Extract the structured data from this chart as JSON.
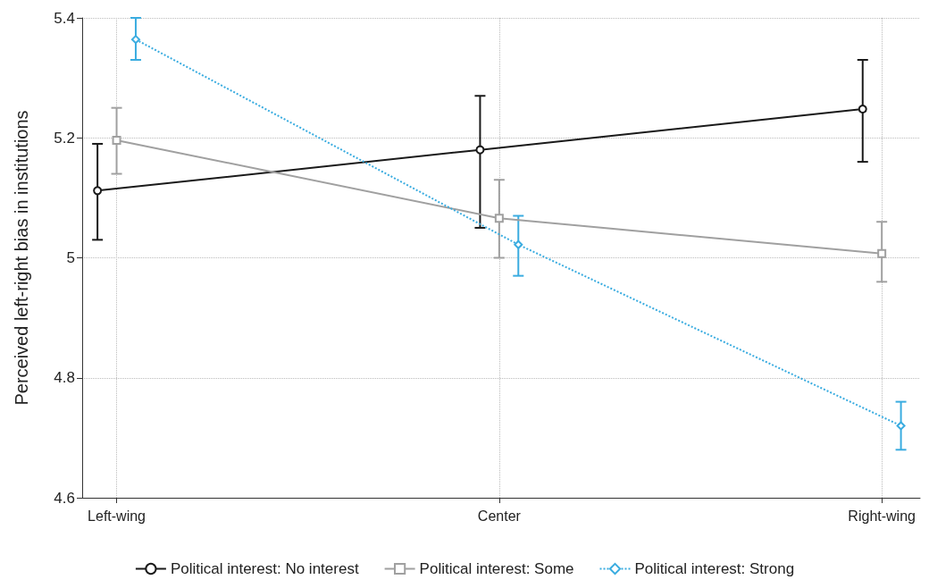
{
  "chart_data": {
    "type": "line",
    "ylabel": "Perceived left-right bias in institutions",
    "categories": [
      "Left-wing",
      "Center",
      "Right-wing"
    ],
    "ylim": [
      4.6,
      5.4
    ],
    "yticks": [
      4.6,
      4.8,
      5,
      5.2,
      5.4
    ],
    "grid": true,
    "legend": "bottom",
    "series": [
      {
        "name": "Political interest: No interest",
        "color": "#1a1a1a",
        "marker": "circle",
        "line_style": "solid",
        "values": [
          5.112,
          5.18,
          5.248
        ],
        "errors": [
          [
            5.03,
            5.19
          ],
          [
            5.05,
            5.27
          ],
          [
            5.16,
            5.33
          ]
        ]
      },
      {
        "name": "Political interest: Some",
        "color": "#a0a0a0",
        "marker": "square",
        "line_style": "solid",
        "values": [
          5.196,
          5.066,
          5.007
        ],
        "errors": [
          [
            5.14,
            5.25
          ],
          [
            5.0,
            5.13
          ],
          [
            4.96,
            5.06
          ]
        ]
      },
      {
        "name": "Political interest: Strong",
        "color": "#3aace0",
        "marker": "diamond",
        "line_style": "dotted",
        "values": [
          5.364,
          5.022,
          4.72
        ],
        "errors": [
          [
            5.33,
            5.4
          ],
          [
            4.97,
            5.07
          ],
          [
            4.68,
            4.76
          ]
        ]
      }
    ]
  }
}
